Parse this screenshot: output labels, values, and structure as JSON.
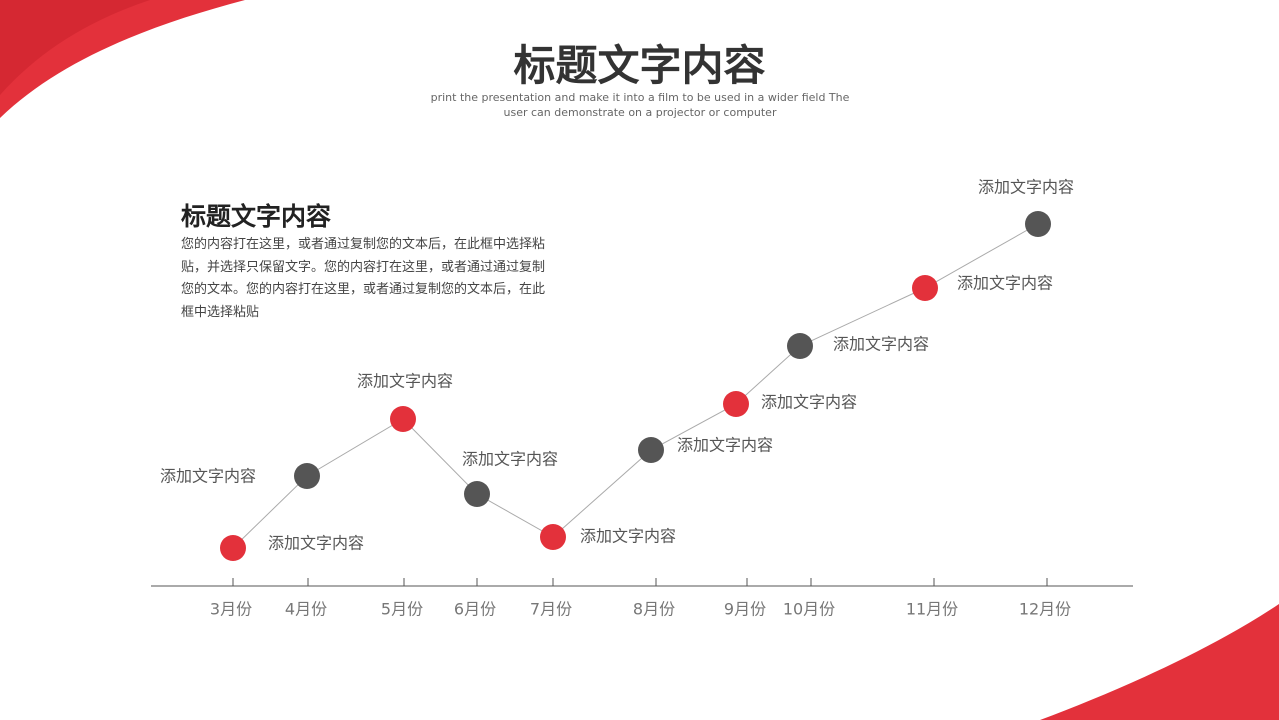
{
  "header": {
    "title": "标题文字内容",
    "subtitle": "print the presentation and make it into a film to be used in a wider field The user can demonstrate on a projector or computer"
  },
  "text_block": {
    "title": "标题文字内容",
    "body": "您的内容打在这里，或者通过复制您的文本后，在此框中选择粘贴，并选择只保留文字。您的内容打在这里，或者通过通过复制您的文本。您的内容打在这里，或者通过复制您的文本后，在此框中选择粘贴"
  },
  "timeline": {
    "points": [
      {
        "month": "3月份",
        "label": "添加文字内容"
      },
      {
        "month": "4月份",
        "label": "添加文字内容"
      },
      {
        "month": "5月份",
        "label": "添加文字内容"
      },
      {
        "month": "6月份",
        "label": "添加文字内容"
      },
      {
        "month": "7月份",
        "label": "添加文字内容"
      },
      {
        "month": "8月份",
        "label": "添加文字内容"
      },
      {
        "month": "9月份",
        "label": "添加文字内容"
      },
      {
        "month": "10月份",
        "label": "添加文字内容"
      },
      {
        "month": "11月份",
        "label": "添加文字内容"
      },
      {
        "month": "12月份",
        "label": "添加文字内容"
      }
    ]
  }
}
